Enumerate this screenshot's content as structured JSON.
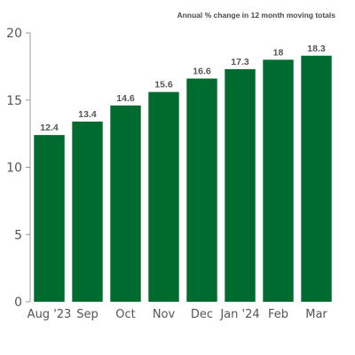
{
  "chart_data": {
    "type": "bar",
    "subtitle": "Annual % change in 12 month moving totals",
    "categories": [
      "Aug '23",
      "Sep",
      "Oct",
      "Nov",
      "Dec",
      "Jan '24",
      "Feb",
      "Mar"
    ],
    "values": [
      12.4,
      13.4,
      14.6,
      15.6,
      16.6,
      17.3,
      18,
      18.3
    ],
    "value_labels": [
      "12.4",
      "13.4",
      "14.6",
      "15.6",
      "16.6",
      "17.3",
      "18",
      "18.3"
    ],
    "y_ticks": [
      "0",
      "5",
      "10",
      "15",
      "20"
    ],
    "ylim": [
      0,
      20
    ],
    "grid": false,
    "bar_color": "#006b2f",
    "axis_color": "#999999"
  }
}
